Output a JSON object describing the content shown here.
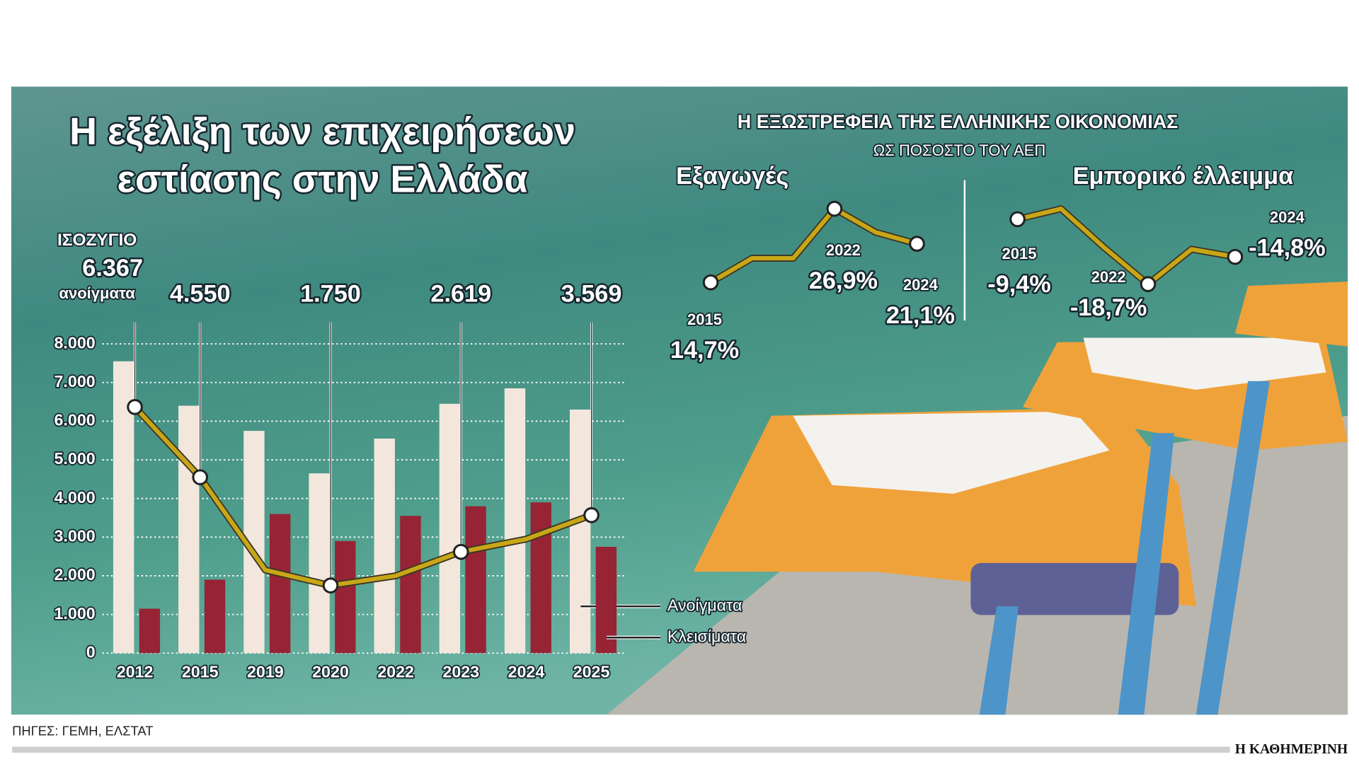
{
  "panel_title": "Η ΕΞΩΣΤΡΕΦΕΙΑ ΤΗΣ ΕΛΛΗΝΙΚΗΣ ΟΙΚΟΝΟΜΙΑΣ",
  "panel_subtitle": "ΩΣ ΠΟΣΟΣΤΟ ΤΟΥ ΑΕΠ",
  "source": "ΠΗΓΕΣ: ΓΕΜΗ, ΕΛΣΤΑΤ",
  "brand": "Η ΚΑΘΗΜΕΡΙΝΗ",
  "chart_data": [
    {
      "type": "bar",
      "title": [
        "Η εξέλιξη των επιχειρήσεων",
        "εστίασης στην Ελλάδα"
      ],
      "categories": [
        "2012",
        "2015",
        "2019",
        "2020",
        "2022",
        "2023",
        "2024",
        "2025"
      ],
      "series": [
        {
          "name": "Ανοίγματα",
          "color": "#f3e7dd",
          "values": [
            7550,
            6400,
            5750,
            4650,
            5550,
            6450,
            6850,
            6300
          ]
        },
        {
          "name": "Κλεισίματα",
          "color": "#962435",
          "values": [
            1150,
            1900,
            3600,
            2900,
            3550,
            3800,
            3900,
            2750
          ]
        },
        {
          "name": "ΙΣΟΖΥΓΙΟ",
          "type": "line",
          "color": "#c8a617",
          "unit_label": "ανοίγματα",
          "values": [
            6367,
            4550,
            2150,
            1750,
            2000,
            2619,
            2950,
            3569
          ],
          "value_labels": [
            "6.367",
            "4.550",
            null,
            "1.750",
            null,
            "2.619",
            null,
            "3.569"
          ]
        }
      ],
      "ylim": [
        0,
        8000
      ],
      "yticks": [
        0,
        {
          "value": 1000,
          "label": "1.000"
        },
        {
          "value": 2000,
          "label": "2.000"
        },
        {
          "value": 3000,
          "label": "3.000"
        },
        {
          "value": 4000,
          "label": "4.000"
        },
        {
          "value": 5000,
          "label": "5.000"
        },
        {
          "value": 6000,
          "label": "6.000"
        },
        {
          "value": 7000,
          "label": "7.000"
        },
        {
          "value": 8000,
          "label": "8.000"
        }
      ],
      "grid": true
    },
    {
      "type": "line",
      "title": "Εξαγωγές",
      "color": "#c8a617",
      "categories": [
        "2015",
        null,
        null,
        "2022",
        null,
        "2024"
      ],
      "values": [
        14.7,
        18.7,
        18.7,
        26.9,
        23.0,
        21.1
      ],
      "value_labels": [
        "14,7%",
        null,
        null,
        "26,9%",
        null,
        "21,1%"
      ]
    },
    {
      "type": "line",
      "title": "Εμπορικό έλλειμμα",
      "color": "#c8a617",
      "categories": [
        "2015",
        null,
        null,
        "2022",
        null,
        "2024"
      ],
      "values": [
        -9.4,
        -7.9,
        -13.5,
        -18.7,
        -13.7,
        -14.8
      ],
      "value_labels": [
        "-9,4%",
        null,
        null,
        "-18,7%",
        null,
        "-14,8%"
      ]
    }
  ]
}
